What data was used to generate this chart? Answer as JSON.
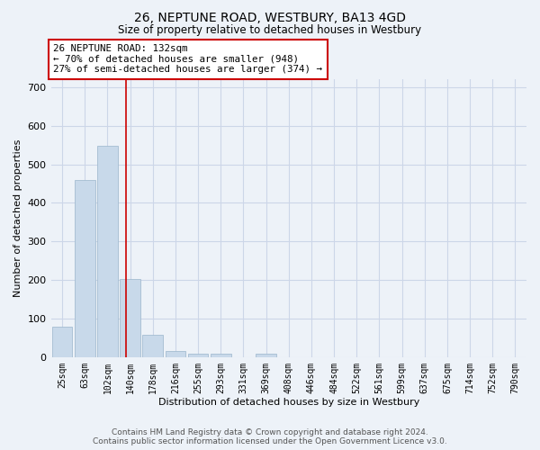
{
  "title": "26, NEPTUNE ROAD, WESTBURY, BA13 4GD",
  "subtitle": "Size of property relative to detached houses in Westbury",
  "xlabel": "Distribution of detached houses by size in Westbury",
  "ylabel": "Number of detached properties",
  "footer_line1": "Contains HM Land Registry data © Crown copyright and database right 2024.",
  "footer_line2": "Contains public sector information licensed under the Open Government Licence v3.0.",
  "bar_color": "#c8d9ea",
  "bar_edge_color": "#9ab5cc",
  "grid_color": "#ccd6e8",
  "background_color": "#edf2f8",
  "annotation_box_color": "#ffffff",
  "annotation_border_color": "#cc0000",
  "red_line_color": "#cc0000",
  "categories": [
    "25sqm",
    "63sqm",
    "102sqm",
    "140sqm",
    "178sqm",
    "216sqm",
    "255sqm",
    "293sqm",
    "331sqm",
    "369sqm",
    "408sqm",
    "446sqm",
    "484sqm",
    "522sqm",
    "561sqm",
    "599sqm",
    "637sqm",
    "675sqm",
    "714sqm",
    "752sqm",
    "790sqm"
  ],
  "values": [
    78,
    460,
    548,
    203,
    57,
    15,
    10,
    10,
    0,
    8,
    0,
    0,
    0,
    0,
    0,
    0,
    0,
    0,
    0,
    0,
    0
  ],
  "annotation_text_line1": "26 NEPTUNE ROAD: 132sqm",
  "annotation_text_line2": "← 70% of detached houses are smaller (948)",
  "annotation_text_line3": "27% of semi-detached houses are larger (374) →",
  "red_line_x": 2.82,
  "ylim": [
    0,
    720
  ],
  "yticks": [
    0,
    100,
    200,
    300,
    400,
    500,
    600,
    700
  ]
}
